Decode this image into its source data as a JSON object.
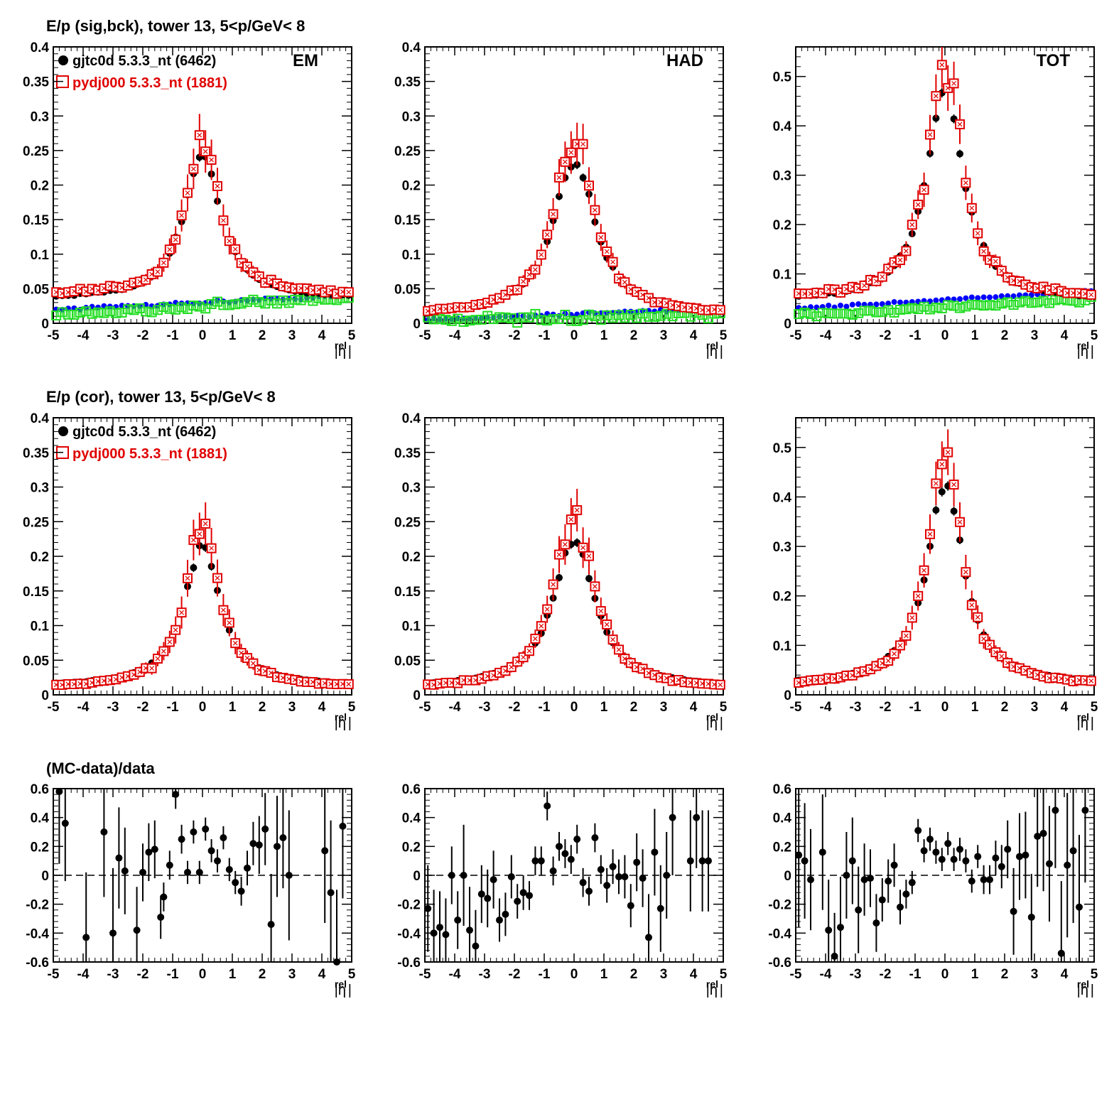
{
  "figure": {
    "row_titles": [
      "E/p (sig,bck), tower 13,  5<p/GeV< 8",
      "E/p (cor), tower 13,  5<p/GeV< 8",
      "(MC-data)/data"
    ],
    "column_labels": [
      "EM",
      "HAD",
      "TOT"
    ],
    "xlabel": "|η",
    "xlabel_sup": "rel",
    "xlabel_close": "|",
    "legend": {
      "data_label": "gjtc0d 5.3.3_nt (6462)",
      "mc_label": "pydj000 5.3.3_nt (1881)"
    }
  },
  "chart_data": [
    {
      "id": "sig-em",
      "type": "scatter",
      "xlim": [
        -5,
        5
      ],
      "ylim": [
        0,
        0.4
      ],
      "xticks": [
        -5,
        -4,
        -3,
        -2,
        -1,
        0,
        1,
        2,
        3,
        4,
        5
      ],
      "yticks": [
        0,
        0.05,
        0.1,
        0.15,
        0.2,
        0.25,
        0.3,
        0.35,
        0.4
      ],
      "ytick_labels": [
        "0",
        "0.05",
        "0.1",
        "0.15",
        "0.2",
        "0.25",
        "0.3",
        "0.35",
        "0.4"
      ],
      "peak_data": 0.245,
      "peak_mc": 0.27,
      "width": 0.95,
      "base_data": 0.035,
      "base_mc": 0.04,
      "bck_blue": [
        0.02,
        0.04
      ],
      "bck_green": [
        0.012,
        0.038
      ],
      "err_scale": 0.02
    },
    {
      "id": "sig-had",
      "type": "scatter",
      "xlim": [
        -5,
        5
      ],
      "ylim": [
        0,
        0.4
      ],
      "xticks": [
        -5,
        -4,
        -3,
        -2,
        -1,
        0,
        1,
        2,
        3,
        4,
        5
      ],
      "yticks": [
        0,
        0.05,
        0.1,
        0.15,
        0.2,
        0.25,
        0.3,
        0.35,
        0.4
      ],
      "ytick_labels": [
        "0",
        "0.05",
        "0.1",
        "0.15",
        "0.2",
        "0.25",
        "0.3",
        "0.35",
        "0.4"
      ],
      "peak_data": 0.235,
      "peak_mc": 0.27,
      "width": 1.1,
      "base_data": 0.012,
      "base_mc": 0.012,
      "bck_blue": [
        0.005,
        0.022
      ],
      "bck_green": [
        0.003,
        0.012
      ],
      "err_scale": 0.02
    },
    {
      "id": "sig-tot",
      "type": "scatter",
      "xlim": [
        -5,
        5
      ],
      "ylim": [
        0,
        0.56
      ],
      "xticks": [
        -5,
        -4,
        -3,
        -2,
        -1,
        0,
        1,
        2,
        3,
        4,
        5
      ],
      "yticks": [
        0,
        0.1,
        0.2,
        0.3,
        0.4,
        0.5
      ],
      "ytick_labels": [
        "0",
        "0.1",
        "0.2",
        "0.3",
        "0.4",
        "0.5"
      ],
      "peak_data": 0.48,
      "peak_mc": 0.53,
      "width": 0.95,
      "base_data": 0.045,
      "base_mc": 0.05,
      "bck_blue": [
        0.03,
        0.065
      ],
      "bck_green": [
        0.015,
        0.05
      ],
      "err_scale": 0.03
    },
    {
      "id": "cor-em",
      "type": "scatter",
      "xlim": [
        -5,
        5
      ],
      "ylim": [
        0,
        0.4
      ],
      "xticks": [
        -5,
        -4,
        -3,
        -2,
        -1,
        0,
        1,
        2,
        3,
        4,
        5
      ],
      "yticks": [
        0,
        0.05,
        0.1,
        0.15,
        0.2,
        0.25,
        0.3,
        0.35,
        0.4
      ],
      "ytick_labels": [
        "0",
        "0.05",
        "0.1",
        "0.15",
        "0.2",
        "0.25",
        "0.3",
        "0.35",
        "0.4"
      ],
      "peak_data": 0.215,
      "peak_mc": 0.245,
      "width": 0.95,
      "base_data": 0.012,
      "base_mc": 0.01,
      "err_scale": 0.02
    },
    {
      "id": "cor-had",
      "type": "scatter",
      "xlim": [
        -5,
        5
      ],
      "ylim": [
        0,
        0.4
      ],
      "xticks": [
        -5,
        -4,
        -3,
        -2,
        -1,
        0,
        1,
        2,
        3,
        4,
        5
      ],
      "yticks": [
        0,
        0.05,
        0.1,
        0.15,
        0.2,
        0.25,
        0.3,
        0.35,
        0.4
      ],
      "ytick_labels": [
        "0",
        "0.05",
        "0.1",
        "0.15",
        "0.2",
        "0.25",
        "0.3",
        "0.35",
        "0.4"
      ],
      "peak_data": 0.225,
      "peak_mc": 0.26,
      "width": 1.1,
      "base_data": 0.01,
      "base_mc": 0.008,
      "err_scale": 0.02
    },
    {
      "id": "cor-tot",
      "type": "scatter",
      "xlim": [
        -5,
        5
      ],
      "ylim": [
        0,
        0.56
      ],
      "xticks": [
        -5,
        -4,
        -3,
        -2,
        -1,
        0,
        1,
        2,
        3,
        4,
        5
      ],
      "yticks": [
        0,
        0.1,
        0.2,
        0.3,
        0.4,
        0.5
      ],
      "ytick_labels": [
        "0",
        "0.1",
        "0.2",
        "0.3",
        "0.4",
        "0.5"
      ],
      "peak_data": 0.43,
      "peak_mc": 0.49,
      "width": 0.95,
      "base_data": 0.02,
      "base_mc": 0.018,
      "err_scale": 0.03
    },
    {
      "id": "ratio-em",
      "type": "scatter",
      "xlim": [
        -5,
        5
      ],
      "ylim": [
        -0.6,
        0.6
      ],
      "xticks": [
        -5,
        -4,
        -3,
        -2,
        -1,
        0,
        1,
        2,
        3,
        4,
        5
      ],
      "yticks": [
        -0.6,
        -0.4,
        -0.2,
        0,
        0.2,
        0.4,
        0.6
      ],
      "ytick_labels": [
        "-0.6",
        "-0.4",
        "-0.2",
        "0",
        "0.2",
        "0.4",
        "0.6"
      ],
      "x": [
        -4.8,
        -4.6,
        -3.9,
        -3.3,
        -3.0,
        -2.8,
        -2.6,
        -2.2,
        -2.0,
        -1.8,
        -1.6,
        -1.4,
        -1.3,
        -1.1,
        -0.9,
        -0.7,
        -0.5,
        -0.3,
        -0.1,
        0.1,
        0.3,
        0.5,
        0.7,
        0.9,
        1.1,
        1.3,
        1.5,
        1.7,
        1.9,
        2.1,
        2.3,
        2.5,
        2.7,
        2.9,
        4.1,
        4.3,
        4.5,
        4.7
      ],
      "y": [
        0.58,
        0.36,
        -0.43,
        0.3,
        -0.4,
        0.12,
        0.03,
        -0.38,
        0.02,
        0.16,
        0.18,
        -0.29,
        -0.15,
        0.07,
        0.56,
        0.25,
        0.02,
        0.3,
        0.02,
        0.32,
        0.17,
        0.1,
        0.26,
        0.04,
        -0.05,
        -0.11,
        0.05,
        0.22,
        0.21,
        0.32,
        -0.34,
        0.2,
        0.26,
        0.0,
        0.17,
        -0.12,
        -0.6,
        0.34
      ],
      "err": [
        0.5,
        0.4,
        0.45,
        0.45,
        0.45,
        0.35,
        0.3,
        0.3,
        0.2,
        0.2,
        0.2,
        0.15,
        0.1,
        0.1,
        0.1,
        0.1,
        0.08,
        0.08,
        0.08,
        0.08,
        0.08,
        0.08,
        0.08,
        0.08,
        0.08,
        0.1,
        0.12,
        0.15,
        0.2,
        0.25,
        0.35,
        0.35,
        0.35,
        0.45,
        0.5,
        0.5,
        0.5,
        0.5
      ]
    },
    {
      "id": "ratio-had",
      "type": "scatter",
      "xlim": [
        -5,
        5
      ],
      "ylim": [
        -0.6,
        0.6
      ],
      "xticks": [
        -5,
        -4,
        -3,
        -2,
        -1,
        0,
        1,
        2,
        3,
        4,
        5
      ],
      "yticks": [
        -0.6,
        -0.4,
        -0.2,
        0,
        0.2,
        0.4,
        0.6
      ],
      "ytick_labels": [
        "-0.6",
        "-0.4",
        "-0.2",
        "0",
        "0.2",
        "0.4",
        "0.6"
      ],
      "x": [
        -4.9,
        -4.7,
        -4.5,
        -4.3,
        -4.1,
        -3.9,
        -3.7,
        -3.5,
        -3.3,
        -3.1,
        -2.9,
        -2.7,
        -2.5,
        -2.3,
        -2.1,
        -1.9,
        -1.7,
        -1.5,
        -1.3,
        -1.1,
        -0.9,
        -0.7,
        -0.5,
        -0.3,
        -0.1,
        0.1,
        0.3,
        0.5,
        0.7,
        0.9,
        1.1,
        1.3,
        1.5,
        1.7,
        1.9,
        2.1,
        2.3,
        2.5,
        2.7,
        2.9,
        3.1,
        3.3,
        3.9,
        4.1,
        4.3,
        4.5
      ],
      "y": [
        -0.23,
        -0.4,
        -0.36,
        -0.41,
        0.0,
        -0.31,
        0.0,
        -0.38,
        -0.49,
        -0.13,
        -0.16,
        -0.03,
        -0.31,
        -0.27,
        -0.01,
        -0.18,
        -0.12,
        -0.14,
        0.1,
        0.1,
        0.48,
        0.03,
        0.2,
        0.15,
        0.11,
        0.25,
        -0.05,
        -0.11,
        0.26,
        0.04,
        -0.07,
        0.06,
        -0.01,
        -0.01,
        -0.21,
        0.09,
        -0.02,
        -0.43,
        0.16,
        -0.23,
        0.0,
        0.4,
        0.1,
        0.4,
        0.1,
        0.1
      ],
      "err": [
        0.3,
        0.3,
        0.25,
        0.25,
        0.2,
        0.2,
        0.35,
        0.3,
        0.25,
        0.2,
        0.2,
        0.2,
        0.15,
        0.15,
        0.15,
        0.12,
        0.12,
        0.1,
        0.1,
        0.1,
        0.1,
        0.1,
        0.1,
        0.1,
        0.1,
        0.1,
        0.1,
        0.1,
        0.1,
        0.1,
        0.12,
        0.12,
        0.12,
        0.15,
        0.15,
        0.2,
        0.2,
        0.3,
        0.3,
        0.3,
        0.3,
        0.4,
        0.35,
        0.35,
        0.35,
        0.35
      ]
    },
    {
      "id": "ratio-tot",
      "type": "scatter",
      "xlim": [
        -5,
        5
      ],
      "ylim": [
        -0.6,
        0.6
      ],
      "xticks": [
        -5,
        -4,
        -3,
        -2,
        -1,
        0,
        1,
        2,
        3,
        4,
        5
      ],
      "yticks": [
        -0.6,
        -0.4,
        -0.2,
        0,
        0.2,
        0.4,
        0.6
      ],
      "ytick_labels": [
        "-0.6",
        "-0.4",
        "-0.2",
        "0",
        "0.2",
        "0.4",
        "0.6"
      ],
      "x": [
        -4.9,
        -4.7,
        -4.5,
        -4.1,
        -3.9,
        -3.7,
        -3.5,
        -3.3,
        -3.1,
        -2.9,
        -2.7,
        -2.5,
        -2.3,
        -2.1,
        -1.9,
        -1.7,
        -1.5,
        -1.3,
        -1.1,
        -0.9,
        -0.7,
        -0.5,
        -0.3,
        -0.1,
        0.1,
        0.3,
        0.5,
        0.7,
        0.9,
        1.1,
        1.3,
        1.5,
        1.7,
        1.9,
        2.1,
        2.3,
        2.5,
        2.7,
        2.9,
        3.1,
        3.3,
        3.5,
        3.7,
        3.9,
        4.1,
        4.3,
        4.5,
        4.7
      ],
      "y": [
        0.14,
        0.1,
        -0.03,
        0.16,
        -0.38,
        -0.56,
        -0.36,
        0.0,
        0.1,
        -0.24,
        -0.03,
        -0.02,
        -0.33,
        -0.17,
        -0.04,
        0.07,
        -0.22,
        -0.13,
        -0.05,
        0.31,
        0.17,
        0.25,
        0.16,
        0.11,
        0.22,
        0.11,
        0.18,
        0.1,
        -0.04,
        0.13,
        -0.03,
        -0.03,
        0.12,
        0.06,
        0.18,
        -0.25,
        0.13,
        0.14,
        -0.29,
        0.27,
        0.29,
        0.08,
        0.45,
        -0.54,
        0.07,
        0.17,
        -0.22,
        0.45
      ],
      "err": [
        0.5,
        0.4,
        0.35,
        0.4,
        0.35,
        0.3,
        0.35,
        0.3,
        0.3,
        0.3,
        0.25,
        0.2,
        0.2,
        0.15,
        0.15,
        0.15,
        0.12,
        0.1,
        0.08,
        0.08,
        0.08,
        0.08,
        0.08,
        0.08,
        0.08,
        0.08,
        0.08,
        0.08,
        0.08,
        0.08,
        0.1,
        0.1,
        0.12,
        0.15,
        0.2,
        0.3,
        0.3,
        0.3,
        0.3,
        0.35,
        0.4,
        0.4,
        0.4,
        0.5,
        0.5,
        0.5,
        0.5,
        0.5
      ]
    }
  ]
}
